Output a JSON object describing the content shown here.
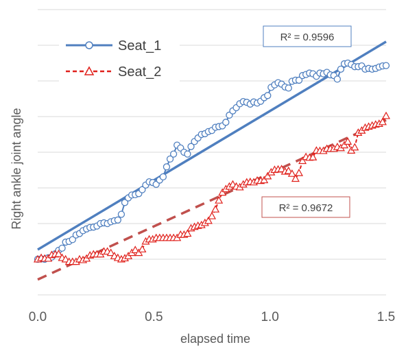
{
  "chart_data": {
    "type": "line",
    "xlabel": "elapsed time",
    "ylabel": "Right ankle joint angle",
    "xlim": [
      0.0,
      1.5
    ],
    "ylim": [
      -1,
      7
    ],
    "grid": "horizontal",
    "legend_placement": "top-left",
    "x_ticks": [
      "0.0",
      "0.5",
      "1.0",
      "1.5"
    ],
    "colors": {
      "seat1": "#4f7fbf",
      "seat2": "#e0201b",
      "seat2_trend": "#c0504d",
      "gridline": "#d9d9d9"
    },
    "series": [
      {
        "name": "Seat_1",
        "marker": "circle",
        "x": [
          0.0,
          0.015,
          0.03,
          0.045,
          0.06,
          0.075,
          0.09,
          0.105,
          0.12,
          0.135,
          0.15,
          0.165,
          0.18,
          0.195,
          0.21,
          0.225,
          0.24,
          0.255,
          0.27,
          0.285,
          0.3,
          0.315,
          0.33,
          0.345,
          0.36,
          0.375,
          0.39,
          0.405,
          0.42,
          0.435,
          0.45,
          0.465,
          0.48,
          0.495,
          0.51,
          0.525,
          0.54,
          0.555,
          0.57,
          0.585,
          0.6,
          0.615,
          0.63,
          0.645,
          0.66,
          0.675,
          0.69,
          0.705,
          0.72,
          0.735,
          0.75,
          0.765,
          0.78,
          0.795,
          0.81,
          0.825,
          0.84,
          0.855,
          0.87,
          0.885,
          0.9,
          0.915,
          0.93,
          0.945,
          0.96,
          0.975,
          0.99,
          1.005,
          1.02,
          1.035,
          1.05,
          1.065,
          1.08,
          1.095,
          1.11,
          1.125,
          1.14,
          1.155,
          1.17,
          1.185,
          1.2,
          1.215,
          1.23,
          1.245,
          1.26,
          1.275,
          1.29,
          1.305,
          1.32,
          1.335,
          1.35,
          1.365,
          1.38,
          1.395,
          1.41,
          1.425,
          1.44,
          1.455,
          1.47,
          1.485,
          1.5
        ],
        "values": [
          0.0,
          0.01,
          0.0,
          0.04,
          0.06,
          0.15,
          0.25,
          0.31,
          0.48,
          0.5,
          0.55,
          0.68,
          0.72,
          0.8,
          0.85,
          0.89,
          0.9,
          0.93,
          1.0,
          1.02,
          1.0,
          1.05,
          1.08,
          1.1,
          1.26,
          1.59,
          1.72,
          1.8,
          1.81,
          1.84,
          1.95,
          2.08,
          2.17,
          2.15,
          2.1,
          2.22,
          2.31,
          2.59,
          2.81,
          2.95,
          3.2,
          3.12,
          3.0,
          2.95,
          3.16,
          3.3,
          3.4,
          3.5,
          3.52,
          3.58,
          3.61,
          3.7,
          3.72,
          3.74,
          3.84,
          4.04,
          4.16,
          4.25,
          4.36,
          4.42,
          4.4,
          4.35,
          4.41,
          4.38,
          4.43,
          4.53,
          4.59,
          4.82,
          4.89,
          4.95,
          4.91,
          4.83,
          4.8,
          4.99,
          5.02,
          5.02,
          5.15,
          5.18,
          5.22,
          5.2,
          5.13,
          5.22,
          5.2,
          5.24,
          5.17,
          5.15,
          5.05,
          5.33,
          5.48,
          5.5,
          5.46,
          5.4,
          5.4,
          5.42,
          5.33,
          5.35,
          5.33,
          5.35,
          5.39,
          5.42,
          5.43
        ]
      },
      {
        "name": "Seat_2",
        "marker": "triangle",
        "x": [
          0.0,
          0.015,
          0.03,
          0.045,
          0.06,
          0.075,
          0.09,
          0.105,
          0.12,
          0.135,
          0.15,
          0.165,
          0.18,
          0.195,
          0.21,
          0.225,
          0.24,
          0.255,
          0.27,
          0.285,
          0.3,
          0.315,
          0.33,
          0.345,
          0.36,
          0.375,
          0.39,
          0.405,
          0.42,
          0.435,
          0.45,
          0.465,
          0.48,
          0.495,
          0.51,
          0.525,
          0.54,
          0.555,
          0.57,
          0.585,
          0.6,
          0.615,
          0.63,
          0.645,
          0.66,
          0.675,
          0.69,
          0.705,
          0.72,
          0.735,
          0.75,
          0.765,
          0.78,
          0.795,
          0.81,
          0.825,
          0.84,
          0.855,
          0.87,
          0.885,
          0.9,
          0.915,
          0.93,
          0.945,
          0.96,
          0.975,
          0.99,
          1.005,
          1.02,
          1.035,
          1.05,
          1.065,
          1.08,
          1.095,
          1.11,
          1.125,
          1.14,
          1.155,
          1.17,
          1.185,
          1.2,
          1.215,
          1.23,
          1.245,
          1.26,
          1.275,
          1.29,
          1.305,
          1.32,
          1.335,
          1.35,
          1.365,
          1.38,
          1.395,
          1.41,
          1.425,
          1.44,
          1.455,
          1.47,
          1.485,
          1.5
        ],
        "values": [
          0.0,
          0.04,
          0.02,
          0.02,
          0.12,
          0.14,
          0.15,
          0.04,
          0.0,
          -0.07,
          -0.07,
          -0.07,
          0.0,
          -0.02,
          0.02,
          0.11,
          0.14,
          0.14,
          0.14,
          0.22,
          0.22,
          0.18,
          0.09,
          0.04,
          0.0,
          0.03,
          0.09,
          0.18,
          0.26,
          0.18,
          0.28,
          0.5,
          0.56,
          0.56,
          0.6,
          0.6,
          0.6,
          0.6,
          0.6,
          0.6,
          0.6,
          0.69,
          0.69,
          0.72,
          0.87,
          0.91,
          0.94,
          0.96,
          1.02,
          1.08,
          1.21,
          1.4,
          1.65,
          1.87,
          1.97,
          2.04,
          2.1,
          2.04,
          2.02,
          2.1,
          2.16,
          2.17,
          2.16,
          2.21,
          2.2,
          2.22,
          2.33,
          2.44,
          2.51,
          2.52,
          2.53,
          2.46,
          2.48,
          2.4,
          2.26,
          2.42,
          2.76,
          2.87,
          2.85,
          2.86,
          3.05,
          3.04,
          3.04,
          3.1,
          3.1,
          3.1,
          3.15,
          3.12,
          3.2,
          3.3,
          3.05,
          3.14,
          3.55,
          3.61,
          3.69,
          3.72,
          3.75,
          3.78,
          3.8,
          3.85,
          4.02
        ]
      }
    ],
    "trendlines": [
      {
        "series": "Seat_1",
        "type": "linear",
        "r2_label": "R² = 0.9596",
        "y_start": 0.27,
        "y_end": 6.1
      },
      {
        "series": "Seat_2",
        "type": "linear",
        "r2_label": "R² = 0.9672",
        "y_start": -0.57,
        "y_end": 3.9
      }
    ]
  }
}
